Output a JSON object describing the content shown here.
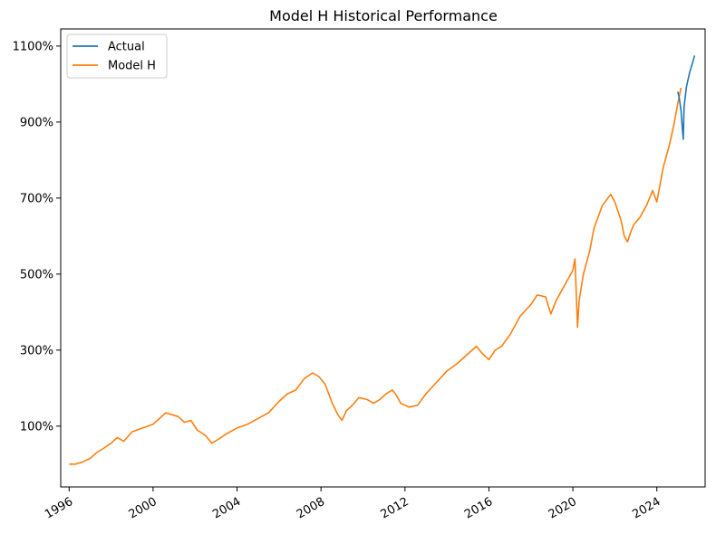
{
  "chart_data": {
    "type": "line",
    "title": "Model H Historical Performance",
    "xlabel": "",
    "ylabel": "",
    "x_ticks": [
      "1996",
      "2000",
      "2004",
      "2008",
      "2012",
      "2016",
      "2020",
      "2024"
    ],
    "y_ticks": [
      "100%",
      "300%",
      "500%",
      "700%",
      "900%",
      "1100%"
    ],
    "xlim": [
      1995.6,
      2026.3
    ],
    "ylim": [
      -60,
      1145
    ],
    "grid": false,
    "legend_position": "top-left",
    "series": [
      {
        "name": "Actual",
        "color": "#1f77b4",
        "x": [
          2025.0,
          2025.08,
          2025.15,
          2025.22,
          2025.26,
          2025.28,
          2025.3,
          2025.34,
          2025.4,
          2025.48,
          2025.56,
          2025.64,
          2025.72,
          2025.8
        ],
        "y": [
          980,
          960,
          930,
          880,
          855,
          905,
          940,
          960,
          990,
          1010,
          1030,
          1045,
          1060,
          1075
        ]
      },
      {
        "name": "Model H",
        "color": "#ff7f0e",
        "x": [
          1996.0,
          1996.3,
          1996.6,
          1997.0,
          1997.3,
          1997.6,
          1998.0,
          1998.3,
          1998.6,
          1999.0,
          1999.5,
          2000.0,
          2000.3,
          2000.6,
          2000.9,
          2001.2,
          2001.5,
          2001.8,
          2002.1,
          2002.5,
          2002.8,
          2003.1,
          2003.5,
          2004.0,
          2004.5,
          2005.0,
          2005.5,
          2006.0,
          2006.4,
          2006.8,
          2007.2,
          2007.6,
          2007.9,
          2008.2,
          2008.5,
          2008.8,
          2009.0,
          2009.2,
          2009.5,
          2009.8,
          2010.2,
          2010.5,
          2010.8,
          2011.1,
          2011.4,
          2011.6,
          2011.8,
          2012.2,
          2012.6,
          2013.0,
          2013.5,
          2014.0,
          2014.5,
          2015.0,
          2015.4,
          2015.7,
          2016.0,
          2016.3,
          2016.6,
          2017.0,
          2017.5,
          2018.0,
          2018.3,
          2018.7,
          2018.95,
          2019.2,
          2019.6,
          2020.0,
          2020.1,
          2020.22,
          2020.3,
          2020.5,
          2020.8,
          2021.0,
          2021.4,
          2021.8,
          2022.0,
          2022.3,
          2022.45,
          2022.6,
          2022.75,
          2022.9,
          2023.2,
          2023.5,
          2023.8,
          2024.0,
          2024.3,
          2024.6,
          2024.8,
          2025.0,
          2025.15
        ],
        "y": [
          0,
          0,
          5,
          15,
          30,
          40,
          55,
          70,
          60,
          85,
          95,
          105,
          120,
          135,
          130,
          125,
          110,
          115,
          90,
          75,
          55,
          65,
          80,
          95,
          105,
          120,
          135,
          165,
          185,
          195,
          225,
          240,
          230,
          210,
          165,
          130,
          115,
          140,
          155,
          175,
          170,
          160,
          170,
          185,
          195,
          180,
          160,
          150,
          155,
          185,
          215,
          245,
          265,
          290,
          310,
          290,
          275,
          300,
          310,
          340,
          390,
          420,
          445,
          440,
          395,
          430,
          470,
          510,
          540,
          360,
          430,
          500,
          560,
          620,
          680,
          710,
          690,
          640,
          600,
          585,
          610,
          630,
          650,
          680,
          720,
          690,
          780,
          840,
          890,
          950,
          990
        ]
      }
    ]
  }
}
